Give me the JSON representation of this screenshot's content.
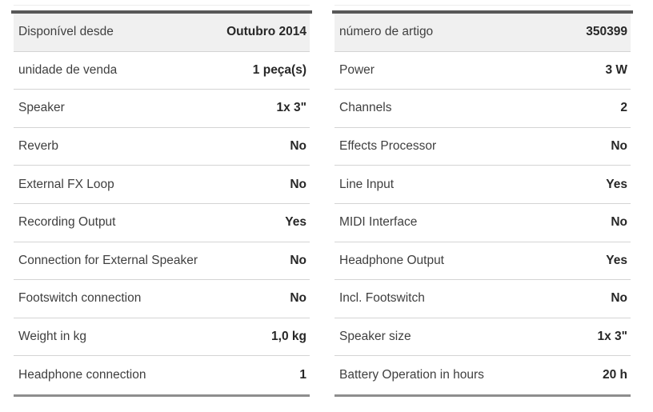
{
  "colors": {
    "page_background": "#ffffff",
    "row_stripe": "#f0f0f0",
    "row_border": "#d4d4d4",
    "table_top_edge": "#585858",
    "table_bottom_edge": "#8e8e8e",
    "label_text": "#3f3f3f",
    "value_text": "#272727"
  },
  "spec_tables": {
    "left": {
      "rows": [
        {
          "label": "Disponível desde",
          "value": "Outubro 2014"
        },
        {
          "label": "unidade de venda",
          "value": "1 peça(s)"
        },
        {
          "label": "Speaker",
          "value": "1x 3\""
        },
        {
          "label": "Reverb",
          "value": "No"
        },
        {
          "label": "External FX Loop",
          "value": "No"
        },
        {
          "label": "Recording Output",
          "value": "Yes"
        },
        {
          "label": "Connection for External Speaker",
          "value": "No"
        },
        {
          "label": "Footswitch connection",
          "value": "No"
        },
        {
          "label": "Weight in kg",
          "value": "1,0 kg"
        },
        {
          "label": "Headphone connection",
          "value": "1"
        }
      ]
    },
    "right": {
      "rows": [
        {
          "label": "número de artigo",
          "value": "350399"
        },
        {
          "label": "Power",
          "value": "3 W"
        },
        {
          "label": "Channels",
          "value": "2"
        },
        {
          "label": "Effects Processor",
          "value": "No"
        },
        {
          "label": "Line Input",
          "value": "Yes"
        },
        {
          "label": "MIDI Interface",
          "value": "No"
        },
        {
          "label": "Headphone Output",
          "value": "Yes"
        },
        {
          "label": "Incl. Footswitch",
          "value": "No"
        },
        {
          "label": "Speaker size",
          "value": "1x 3\""
        },
        {
          "label": "Battery Operation in hours",
          "value": "20 h"
        }
      ]
    }
  }
}
